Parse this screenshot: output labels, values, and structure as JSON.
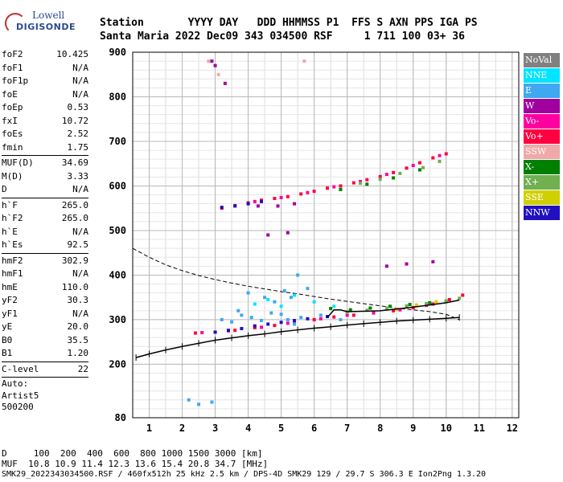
{
  "logo": {
    "line1": "Lowell",
    "line2": "DIGISONDE"
  },
  "header": {
    "line1": "Station       YYYY DAY   DDD HHMMSS P1  FFS S AXN PPS IGA PS",
    "line2": "Santa Maria 2022 Dec09 343 034500 RSF     1 711 100 03+ 36"
  },
  "params": [
    {
      "k": "foF2",
      "v": "10.425"
    },
    {
      "k": "foF1",
      "v": "N/A"
    },
    {
      "k": "foF1p",
      "v": "N/A"
    },
    {
      "k": "foE",
      "v": "N/A"
    },
    {
      "k": "foEp",
      "v": "0.53"
    },
    {
      "k": "fxI",
      "v": "10.72"
    },
    {
      "k": "foEs",
      "v": "2.52"
    },
    {
      "k": "fmin",
      "v": "1.75"
    },
    {
      "sep": true
    },
    {
      "k": "MUF(D)",
      "v": "34.69"
    },
    {
      "k": "M(D)",
      "v": "3.33"
    },
    {
      "k": "D",
      "v": "N/A"
    },
    {
      "sep": true
    },
    {
      "k": "h`F",
      "v": "265.0"
    },
    {
      "k": "h`F2",
      "v": "265.0"
    },
    {
      "k": "h`E",
      "v": "N/A"
    },
    {
      "k": "h`Es",
      "v": "92.5"
    },
    {
      "sep": true
    },
    {
      "k": "hmF2",
      "v": "302.9"
    },
    {
      "k": "hmF1",
      "v": "N/A"
    },
    {
      "k": "hmE",
      "v": "110.0"
    },
    {
      "k": "yF2",
      "v": "30.3"
    },
    {
      "k": "yF1",
      "v": "N/A"
    },
    {
      "k": "yE",
      "v": "20.0"
    },
    {
      "k": "B0",
      "v": "35.5"
    },
    {
      "k": "B1",
      "v": "1.20"
    },
    {
      "sep": true
    },
    {
      "k": "C-level",
      "v": "22"
    },
    {
      "sep": true
    },
    {
      "t": "Auto:"
    },
    {
      "t": "Artist5"
    },
    {
      "t": "500200"
    }
  ],
  "legend": [
    {
      "label": "NoVal",
      "color": "#808080"
    },
    {
      "label": "NNE",
      "color": "#00e5ff"
    },
    {
      "label": "E",
      "color": "#40a8f0"
    },
    {
      "label": "W",
      "color": "#a000a0"
    },
    {
      "label": "Vo-",
      "color": "#ff00a0"
    },
    {
      "label": "Vo+",
      "color": "#ff0040"
    },
    {
      "label": "SSW",
      "color": "#f0a8a8"
    },
    {
      "label": "X-",
      "color": "#008000"
    },
    {
      "label": "X+",
      "color": "#70b050"
    },
    {
      "label": "SSE",
      "color": "#d0d000"
    },
    {
      "label": "NNW",
      "color": "#2010c0"
    }
  ],
  "bottom": {
    "dist_line": "D     100  200  400  600  800 1000 1500 3000 [km]",
    "muf_line": "MUF  10.8 10.9 11.4 12.3 13.6 15.4 20.8 34.7 [MHz]",
    "file_line": "SMK29_2022343034500.RSF / 460fx512h 25 kHz 2.5 km / DPS-4D SMK29 129 / 29.7 S 306.3 E Ion2Png 1.3.20"
  },
  "chart_data": {
    "type": "scatter",
    "xlim": [
      0.5,
      12.2
    ],
    "ylim": [
      80,
      900
    ],
    "xticks": [
      "1",
      "2",
      "3",
      "4",
      "5",
      "6",
      "7",
      "8",
      "9",
      "10",
      "11",
      "12"
    ],
    "yticks": [
      "80",
      "200",
      "300",
      "400",
      "500",
      "600",
      "700",
      "800",
      "900"
    ],
    "grid": true,
    "x_minor_step": 0.5,
    "y_minor_step": 20,
    "series": [
      {
        "name": "Vo+",
        "color": "#ff0040",
        "x": [
          2.4,
          3.0,
          3.6,
          4.2,
          4.8,
          5.4,
          6.0,
          6.6,
          7.2,
          7.8,
          8.4,
          9.0,
          9.6,
          10.1,
          10.5,
          3.2,
          3.6,
          4.0,
          4.4,
          4.8,
          5.2,
          5.6,
          6.0,
          6.4,
          6.8,
          7.2,
          7.6,
          8.0,
          8.4,
          8.8,
          9.2,
          9.6,
          10.0
        ],
        "y": [
          270,
          272,
          276,
          282,
          287,
          294,
          300,
          306,
          310,
          315,
          320,
          327,
          335,
          345,
          355,
          550,
          556,
          562,
          568,
          572,
          576,
          582,
          588,
          595,
          600,
          607,
          614,
          621,
          630,
          640,
          652,
          663,
          672
        ]
      },
      {
        "name": "Vo-",
        "color": "#ff00a0",
        "x": [
          2.6,
          3.4,
          4.4,
          5.2,
          6.2,
          7.0,
          7.8,
          8.6,
          9.4,
          4.2,
          5.0,
          5.8,
          6.6,
          7.4,
          8.2,
          9.0,
          9.8
        ],
        "y": [
          271,
          275,
          283,
          292,
          302,
          310,
          316,
          322,
          332,
          565,
          574,
          585,
          598,
          610,
          626,
          646,
          668
        ]
      },
      {
        "name": "NNE",
        "color": "#00e5ff",
        "x": [
          4.2,
          4.6,
          5.0,
          5.4,
          6.0,
          6.6
        ],
        "y": [
          335,
          345,
          330,
          355,
          340,
          330
        ]
      },
      {
        "name": "E",
        "color": "#40a8f0",
        "x": [
          3.2,
          3.5,
          3.8,
          4.1,
          4.4,
          4.7,
          5.0,
          5.2,
          5.4,
          5.6,
          6.2,
          6.8,
          4.0,
          4.5,
          4.8,
          5.1,
          5.3,
          5.5,
          5.8,
          3.7,
          2.2,
          2.5,
          2.9
        ],
        "y": [
          300,
          295,
          310,
          305,
          298,
          315,
          312,
          300,
          290,
          305,
          310,
          300,
          360,
          350,
          340,
          365,
          350,
          400,
          370,
          320,
          120,
          110,
          115
        ]
      },
      {
        "name": "W",
        "color": "#a000a0",
        "x": [
          2.9,
          3.3,
          4.6,
          5.2,
          8.2,
          8.8,
          9.6,
          4.3,
          4.9,
          5.4,
          3.0
        ],
        "y": [
          880,
          830,
          490,
          495,
          420,
          425,
          430,
          555,
          555,
          560,
          870
        ]
      },
      {
        "name": "X-",
        "color": "#008000",
        "x": [
          6.5,
          7.1,
          7.7,
          8.3,
          8.9,
          9.5,
          10.0,
          6.8,
          7.6,
          8.4,
          9.2
        ],
        "y": [
          325,
          322,
          326,
          330,
          334,
          338,
          342,
          592,
          604,
          618,
          636
        ]
      },
      {
        "name": "X+",
        "color": "#70b050",
        "x": [
          7.0,
          7.6,
          8.2,
          8.8,
          9.4,
          10.0,
          10.4,
          7.4,
          8.0,
          8.6,
          9.3,
          9.8
        ],
        "y": [
          318,
          321,
          326,
          331,
          336,
          342,
          348,
          606,
          615,
          628,
          641,
          655
        ]
      },
      {
        "name": "NNW",
        "color": "#2010c0",
        "x": [
          3.0,
          3.4,
          3.8,
          4.2,
          4.6,
          5.0,
          5.4,
          5.8,
          6.4,
          3.6,
          4.0,
          4.4,
          3.2
        ],
        "y": [
          272,
          276,
          280,
          286,
          290,
          294,
          298,
          302,
          307,
          555,
          560,
          565,
          552
        ]
      },
      {
        "name": "SSW",
        "color": "#f0a8a8",
        "x": [
          2.8,
          3.1,
          5.7
        ],
        "y": [
          880,
          850,
          880
        ]
      },
      {
        "name": "SSE",
        "color": "#d0d000",
        "x": [
          8.5,
          9.1,
          9.7
        ],
        "y": [
          323,
          333,
          340
        ]
      }
    ],
    "virtual_height_trace": {
      "x": [
        0.6,
        1.0,
        1.5,
        2.0,
        2.5,
        3.0,
        3.5,
        4.0,
        4.5,
        5.0,
        5.5,
        6.0,
        6.5,
        7.0,
        7.5,
        8.0,
        8.5,
        9.0,
        9.5,
        10.0,
        10.4
      ],
      "y": [
        215,
        223,
        232,
        240,
        247,
        254,
        259,
        264,
        268,
        273,
        277,
        281,
        284,
        288,
        291,
        294,
        297,
        299,
        301,
        303,
        305
      ]
    },
    "solid_trace": {
      "x": [
        6.4,
        6.6,
        6.8,
        7.0,
        8.0,
        9.0,
        10.0,
        10.4
      ],
      "y": [
        305,
        322,
        322,
        318,
        320,
        328,
        338,
        344
      ]
    },
    "dashed_profile": {
      "x": [
        0.5,
        1.0,
        1.5,
        2.0,
        2.5,
        3.0,
        3.5,
        4.0,
        4.5,
        5.0,
        5.5,
        6.0,
        6.5,
        7.0,
        7.5,
        8.0,
        8.5,
        9.0,
        9.5,
        10.0,
        10.4
      ],
      "y": [
        460,
        440,
        423,
        410,
        399,
        390,
        382,
        375,
        369,
        363,
        358,
        352,
        346,
        341,
        336,
        331,
        326,
        322,
        318,
        312,
        300
      ]
    }
  }
}
